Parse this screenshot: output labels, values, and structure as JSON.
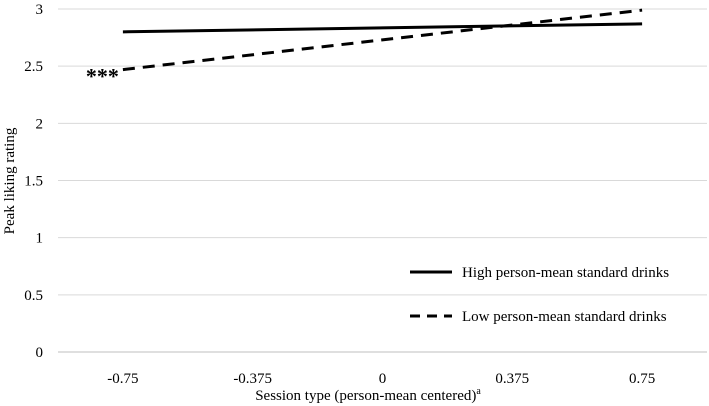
{
  "chart_data": {
    "type": "line",
    "xlabel": "Session type (person-mean centered)",
    "xlabel_superscript": "a",
    "ylabel": "Peak liking rating",
    "x": [
      -0.75,
      0.75
    ],
    "x_ticks": [
      "-0.75",
      "-0.375",
      "0",
      "0.375",
      "0.75"
    ],
    "x_tick_values": [
      -0.75,
      -0.375,
      0,
      0.375,
      0.75
    ],
    "y_ticks": [
      "0",
      "0.5",
      "1",
      "1.5",
      "2",
      "2.5",
      "3"
    ],
    "ylim": [
      0,
      3
    ],
    "grid": "horizontal",
    "legend_position": "bottom-right",
    "series": [
      {
        "name": "High person-mean standard drinks",
        "style": "solid",
        "values": [
          2.8,
          2.87
        ]
      },
      {
        "name": "Low person-mean standard drinks",
        "style": "dashed",
        "values": [
          2.47,
          2.99
        ]
      }
    ],
    "annotations": [
      {
        "text": "***",
        "x": -0.75,
        "y": 2.47
      }
    ],
    "colors": {
      "line": "#000000",
      "grid": "#d9d9d9"
    }
  }
}
